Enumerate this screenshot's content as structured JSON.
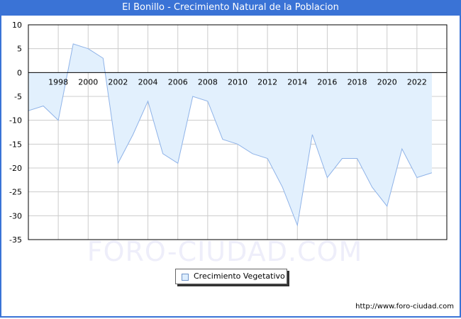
{
  "header": {
    "title": "El Bonillo - Crecimiento Natural de la Poblacion"
  },
  "legend": {
    "label": "Crecimiento Vegetativo",
    "swatch_color": "#ddeeff",
    "line_color": "#8fb3e8"
  },
  "watermark": "FORO-CIUDAD.COM",
  "footer": {
    "url": "http://www.foro-ciudad.com"
  },
  "colors": {
    "title_bar": "#3a73d6",
    "fill": "#e2f0fd",
    "line": "#8fb3e8",
    "grid": "#cccccc"
  },
  "chart_data": {
    "type": "area",
    "title": "El Bonillo - Crecimiento Natural de la Poblacion",
    "xlabel": "",
    "ylabel": "",
    "x": [
      1996,
      1997,
      1998,
      1999,
      2000,
      2001,
      2002,
      2003,
      2004,
      2005,
      2006,
      2007,
      2008,
      2009,
      2010,
      2011,
      2012,
      2013,
      2014,
      2015,
      2016,
      2017,
      2018,
      2019,
      2020,
      2021,
      2022,
      2023
    ],
    "series": [
      {
        "name": "Crecimiento Vegetativo",
        "values": [
          -8,
          -7,
          -10,
          6,
          5,
          3,
          -19,
          -13,
          -6,
          -17,
          -19,
          -5,
          -6,
          -14,
          -15,
          -17,
          -18,
          -24,
          -32,
          -13,
          -22,
          -18,
          -18,
          -24,
          -28,
          -16,
          -22,
          -21
        ]
      }
    ],
    "xticks": [
      "1998",
      "2000",
      "2002",
      "2004",
      "2006",
      "2008",
      "2010",
      "2012",
      "2014",
      "2016",
      "2018",
      "2020",
      "2022"
    ],
    "yticks": [
      "10",
      "5",
      "0",
      "-5",
      "-10",
      "-15",
      "-20",
      "-25",
      "-30",
      "-35"
    ],
    "ylim": [
      -35,
      10
    ],
    "xlim": [
      1996,
      2024
    ],
    "grid": true,
    "legend_position": "bottom-center"
  }
}
